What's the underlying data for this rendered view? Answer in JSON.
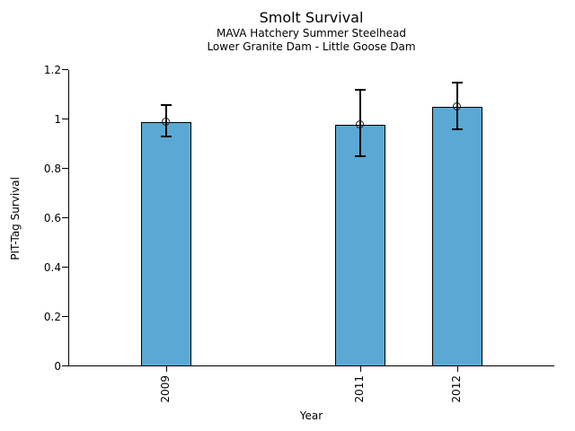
{
  "chart_data": {
    "type": "bar",
    "title": "Smolt Survival",
    "subtitle": [
      "MAVA Hatchery Summer Steelhead",
      "Lower Granite Dam - Little Goose Dam"
    ],
    "categories": [
      "2009",
      "2011",
      "2012"
    ],
    "x_numeric": [
      2009,
      2011,
      2012
    ],
    "values": [
      0.99,
      0.98,
      1.05
    ],
    "error_low": [
      0.93,
      0.85,
      0.96
    ],
    "error_high": [
      1.06,
      1.12,
      1.15
    ],
    "xlabel": "Year",
    "ylabel": "PIT-Tag Survival",
    "xlim": [
      2008,
      2013
    ],
    "ylim": [
      0,
      1.2
    ],
    "yticks": [
      0,
      0.2,
      0.4,
      0.6,
      0.8,
      1,
      1.2
    ],
    "ytick_labels": [
      "0",
      "0.2",
      "0.4",
      "0.6",
      "0.8",
      "1",
      "1.2"
    ],
    "bar_width_years": 0.52,
    "bar_color": "#5AA9D4",
    "bar_edge_color": "#000000",
    "error_color": "#000000",
    "marker": "open-circle",
    "grid": false,
    "legend": null,
    "background": "#FFFFFF"
  }
}
